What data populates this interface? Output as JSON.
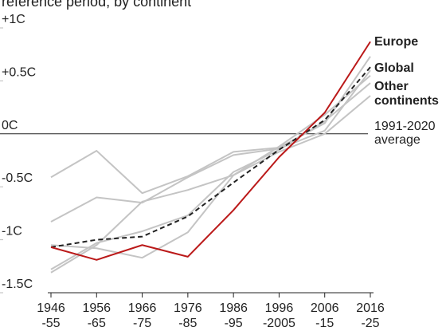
{
  "chart_data": {
    "type": "line",
    "title": "reference period, by continent",
    "annotation": "1991-2020 average",
    "categories": [
      [
        "1946",
        "-55"
      ],
      [
        "1956",
        "-65"
      ],
      [
        "1966",
        "-75"
      ],
      [
        "1976",
        "-85"
      ],
      [
        "1986",
        "-95"
      ],
      [
        "1996",
        "-2005"
      ],
      [
        "2006",
        "-15"
      ],
      [
        "2016",
        "-25"
      ]
    ],
    "ylim": [
      -1.5,
      1
    ],
    "yticks": [
      {
        "value": 1,
        "label": "+1C"
      },
      {
        "value": 0.5,
        "label": "+0.5C"
      },
      {
        "value": 0,
        "label": "0C"
      },
      {
        "value": -0.5,
        "label": "-0.5C"
      },
      {
        "value": -1,
        "label": "-1C"
      },
      {
        "value": -1.5,
        "label": "-1.5C"
      }
    ],
    "series": [
      {
        "name": "Other continents",
        "color": "#c4c4c4",
        "values": [
          -0.41,
          -0.16,
          -0.56,
          -0.4,
          -0.17,
          -0.13,
          0.1,
          0.73
        ]
      },
      {
        "color": "#c4c4c4",
        "values": [
          -0.83,
          -0.6,
          -0.65,
          -0.41,
          -0.2,
          -0.14,
          0.03,
          0.6
        ]
      },
      {
        "color": "#c4c4c4",
        "values": [
          -1.05,
          -1.08,
          -1.17,
          -0.93,
          -0.39,
          -0.12,
          0.18,
          0.55
        ]
      },
      {
        "color": "#c4c4c4",
        "values": [
          -1.28,
          -1.03,
          -0.92,
          -0.77,
          -0.36,
          -0.15,
          0.12,
          0.48
        ]
      },
      {
        "color": "#c4c4c4",
        "values": [
          -1.31,
          -1.05,
          -0.64,
          -0.53,
          -0.39,
          -0.17,
          0.0,
          0.36
        ]
      },
      {
        "name": "Global",
        "color": "#222222",
        "dashed": true,
        "values": [
          -1.07,
          -1.0,
          -0.97,
          -0.78,
          -0.46,
          -0.15,
          0.13,
          0.63
        ]
      },
      {
        "name": "Europe",
        "color": "#bb1919",
        "values": [
          -1.07,
          -1.19,
          -1.05,
          -1.16,
          -0.72,
          -0.22,
          0.2,
          0.87
        ]
      }
    ]
  }
}
